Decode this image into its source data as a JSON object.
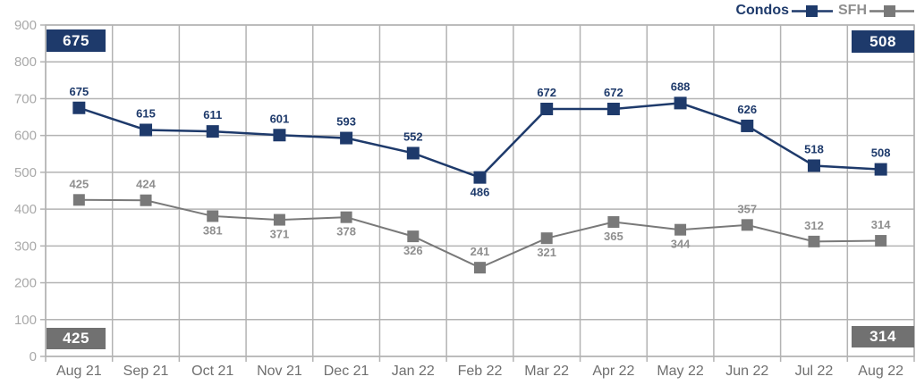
{
  "chart_data": {
    "type": "line",
    "categories": [
      "Aug 21",
      "Sep 21",
      "Oct 21",
      "Nov 21",
      "Dec 21",
      "Jan 22",
      "Feb 22",
      "Mar 22",
      "Apr 22",
      "May 22",
      "Jun 22",
      "Jul 22",
      "Aug 22"
    ],
    "series": [
      {
        "name": "Condos",
        "color": "#1e3a6b",
        "values": [
          675,
          615,
          611,
          601,
          593,
          552,
          486,
          672,
          672,
          688,
          626,
          518,
          508
        ],
        "label_positions": [
          "above",
          "above",
          "above",
          "above",
          "above",
          "above",
          "below",
          "above",
          "above",
          "above",
          "above",
          "above",
          "above"
        ]
      },
      {
        "name": "SFH",
        "color": "#797979",
        "values": [
          425,
          424,
          381,
          371,
          378,
          326,
          241,
          321,
          365,
          344,
          357,
          312,
          314
        ],
        "label_positions": [
          "above",
          "above",
          "below",
          "below",
          "below",
          "below",
          "above",
          "below",
          "below",
          "below",
          "above",
          "above",
          "above"
        ]
      }
    ],
    "title": "",
    "xlabel": "",
    "ylabel": "",
    "ylim": [
      0,
      900
    ],
    "ytick_step": 100,
    "grid": true,
    "legend_position": "top-right"
  },
  "badges": {
    "top_left": "675",
    "top_right": "508",
    "bottom_left": "425",
    "bottom_right": "314"
  },
  "colors": {
    "navy": "#1e3a6b",
    "sfh_gray": "#797979",
    "sfh_label_gray": "#8f8f8f",
    "badge_gray": "#717171",
    "grid": "#b3b3b3",
    "y_tick_label": "#a9a9a9",
    "x_tick_label": "#6f6f6f",
    "badge_text": "#ffffff"
  }
}
